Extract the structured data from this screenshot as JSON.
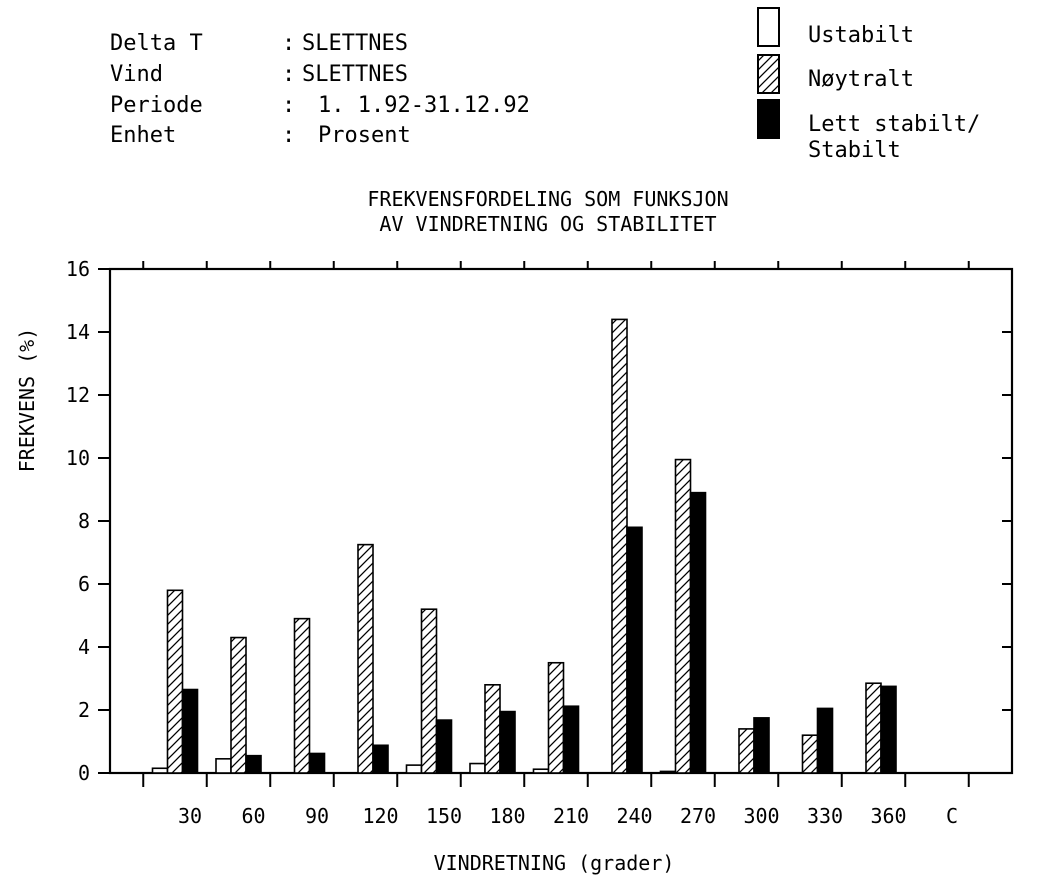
{
  "header": {
    "rows": [
      {
        "key": "Delta T",
        "sep": ":",
        "value": "SLETTNES"
      },
      {
        "key": "Vind",
        "sep": ":",
        "value": "SLETTNES"
      },
      {
        "key": "Periode",
        "sep": ":",
        "value": "1. 1.92-31.12.92"
      },
      {
        "key": "Enhet",
        "sep": ":",
        "value": "Prosent"
      }
    ]
  },
  "legend": {
    "items": [
      {
        "lines": [
          "Ustabilt"
        ],
        "fill": "open"
      },
      {
        "lines": [
          "Nøytralt"
        ],
        "fill": "hatch"
      },
      {
        "lines": [
          "Lett stabilt/",
          "Stabilt"
        ],
        "fill": "solid"
      }
    ]
  },
  "chart_data": {
    "type": "bar",
    "title": [
      "FREKVENSFORDELING SOM FUNKSJON",
      "AV VINDRETNING OG STABILITET"
    ],
    "xlabel": "VINDRETNING (grader)",
    "ylabel": "FREKVENS (%)",
    "ylim": [
      0,
      16
    ],
    "yticks": [
      "0",
      "2",
      "4",
      "6",
      "8",
      "10",
      "12",
      "14",
      "16"
    ],
    "categories": [
      "30",
      "60",
      "90",
      "120",
      "150",
      "180",
      "210",
      "240",
      "270",
      "300",
      "330",
      "360",
      "C"
    ],
    "series": [
      {
        "name": "Ustabilt",
        "fill": "open",
        "values": [
          0.15,
          0.45,
          0,
          0,
          0.25,
          0.3,
          0.12,
          0,
          0.05,
          0,
          0,
          0,
          0
        ]
      },
      {
        "name": "Nøytralt",
        "fill": "hatch",
        "values": [
          5.8,
          4.3,
          4.9,
          7.25,
          5.2,
          2.8,
          3.5,
          14.4,
          9.95,
          1.4,
          1.2,
          2.85,
          0
        ]
      },
      {
        "name": "Lett stabilt/Stabilt",
        "fill": "solid",
        "values": [
          2.65,
          0.55,
          0.62,
          0.88,
          1.68,
          1.95,
          2.12,
          7.8,
          8.9,
          1.75,
          2.05,
          2.75,
          0
        ]
      }
    ],
    "grid": false,
    "legend_position": "top-right"
  }
}
